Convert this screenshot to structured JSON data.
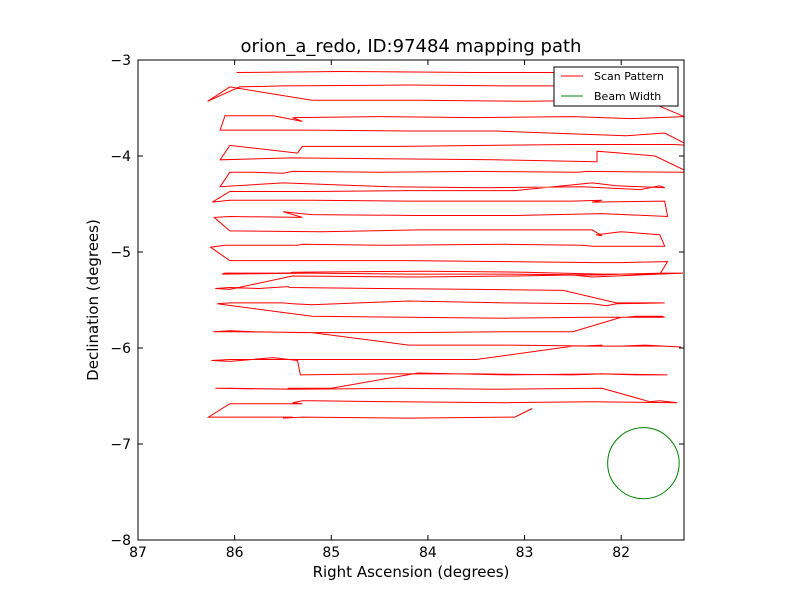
{
  "chart_data": {
    "type": "line",
    "title": "orion_a_redo, ID:97484 mapping path",
    "xlabel": "Right Ascension (degrees)",
    "ylabel": "Declination (degrees)",
    "xlim": [
      87.0,
      81.35
    ],
    "ylim": [
      -8.0,
      -3.0
    ],
    "x_inverted": true,
    "grid": false,
    "legend_position": "top-right",
    "x_ticks": [
      87,
      86,
      85,
      84,
      83,
      82
    ],
    "x_tick_labels": [
      "87",
      "86",
      "85",
      "84",
      "83",
      "82"
    ],
    "y_ticks": [
      -3,
      -4,
      -5,
      -6,
      -7,
      -8
    ],
    "y_tick_labels": [
      "−3",
      "−4",
      "−5",
      "−6",
      "−7",
      "−8"
    ],
    "series": [
      {
        "name": "Scan Pattern",
        "color": "#ff0000",
        "x": [
          85.98,
          84.9,
          83.5,
          82.35,
          81.75,
          81.45,
          81.8,
          82.3,
          83.2,
          84.2,
          85.5,
          85.95,
          86.28,
          86.05,
          85.2,
          84.1,
          83.0,
          82.0,
          81.7,
          81.35,
          81.9,
          82.5,
          83.5,
          84.5,
          85.4,
          85.3,
          85.6,
          86.1,
          86.15,
          85.25,
          84.2,
          83.3,
          82.5,
          81.95,
          81.55,
          81.3,
          81.45,
          82.5,
          83.4,
          84.3,
          85.3,
          85.35,
          86.05,
          86.15,
          85.4,
          84.3,
          83.3,
          82.25,
          82.25,
          82.0,
          81.65,
          81.3,
          82.35,
          82.45,
          83.5,
          84.5,
          85.4,
          85.5,
          85.8,
          86.05,
          86.15,
          85.5,
          84.4,
          83.4,
          82.4,
          81.8,
          81.6,
          81.55,
          82.05,
          82.3,
          83.1,
          84.2,
          85.2,
          86.05,
          86.23,
          86.05,
          85.2,
          84.2,
          83.2,
          82.5,
          82.2,
          82.3,
          81.55,
          81.52,
          82.2,
          83.1,
          84.1,
          85.2,
          85.5,
          85.3,
          86.05,
          86.21,
          86.05,
          85.1,
          84.1,
          83.2,
          82.3,
          82.2,
          82.26,
          82.0,
          81.6,
          81.55,
          82.3,
          82.4,
          83.2,
          84.4,
          85.3,
          85.35,
          86.1,
          86.25,
          86.05,
          85.1,
          84.2,
          83.2,
          82.25,
          82.2,
          82.0,
          81.52,
          81.6,
          82.2,
          83.0,
          84.0,
          85.4,
          85.43,
          86.1,
          86.13,
          85.2,
          84.2,
          83.2,
          82.2,
          82.0,
          81.55,
          81.36,
          82.3,
          82.5,
          83.1,
          84.1,
          85.4,
          85.45,
          86.05,
          86.2,
          86.05,
          85.75,
          85.45,
          85.43,
          84.5,
          83.5,
          82.6,
          82.05,
          81.6,
          81.55,
          82.05,
          82.15,
          82.3,
          83.2,
          84.2,
          85.2,
          85.4,
          85.5,
          86.05,
          86.18,
          85.2,
          84.2,
          83.2,
          82.3,
          81.95,
          81.85,
          81.58,
          81.55,
          82.0,
          82.5,
          83.2,
          84.2,
          85.3,
          85.8,
          86.05,
          86.22,
          86.0,
          85.2,
          84.2,
          83.2,
          82.2,
          82.2,
          82.4,
          81.55,
          81.38,
          81.75,
          82.0,
          82.5,
          83.5,
          84.5,
          85.45,
          85.55,
          86.05,
          86.24,
          86.05,
          85.6,
          85.35,
          85.32,
          84.5,
          83.5,
          82.5,
          82.2,
          81.85,
          81.55,
          81.52,
          82.2,
          83.2,
          84.1,
          85.0,
          85.45,
          85.3,
          86.05,
          86.2,
          85.4,
          84.3,
          83.3,
          82.2,
          81.7,
          81.6,
          81.42,
          82.3,
          83.2,
          84.3,
          85.2,
          85.3,
          85.4,
          85.3,
          86.05,
          86.27,
          85.4,
          85.5,
          85.3,
          84.2,
          83.1,
          82.92
        ],
        "y": [
          -3.13,
          -3.12,
          -3.13,
          -3.13,
          -3.14,
          -3.14,
          -3.28,
          -3.27,
          -3.27,
          -3.26,
          -3.27,
          -3.28,
          -3.43,
          -3.28,
          -3.42,
          -3.42,
          -3.43,
          -3.42,
          -3.44,
          -3.59,
          -3.61,
          -3.59,
          -3.6,
          -3.59,
          -3.6,
          -3.64,
          -3.58,
          -3.58,
          -3.73,
          -3.73,
          -3.74,
          -3.74,
          -3.77,
          -3.79,
          -3.76,
          -3.89,
          -3.88,
          -3.88,
          -3.89,
          -3.9,
          -3.9,
          -3.97,
          -3.89,
          -4.04,
          -4.02,
          -4.03,
          -4.04,
          -4.06,
          -3.95,
          -3.97,
          -4.0,
          -4.17,
          -4.16,
          -4.17,
          -4.16,
          -4.17,
          -4.16,
          -4.18,
          -4.17,
          -4.17,
          -4.32,
          -4.28,
          -4.32,
          -4.33,
          -4.32,
          -4.35,
          -4.31,
          -4.33,
          -4.31,
          -4.28,
          -4.36,
          -4.36,
          -4.37,
          -4.37,
          -4.48,
          -4.46,
          -4.46,
          -4.47,
          -4.47,
          -4.47,
          -4.46,
          -4.48,
          -4.47,
          -4.63,
          -4.6,
          -4.62,
          -4.62,
          -4.61,
          -4.58,
          -4.64,
          -4.63,
          -4.64,
          -4.78,
          -4.79,
          -4.77,
          -4.77,
          -4.77,
          -4.83,
          -4.82,
          -4.79,
          -4.82,
          -4.94,
          -4.94,
          -4.93,
          -4.92,
          -4.93,
          -4.92,
          -4.93,
          -4.93,
          -4.95,
          -5.09,
          -5.09,
          -5.09,
          -5.1,
          -5.11,
          -5.11,
          -5.11,
          -5.1,
          -5.23,
          -5.23,
          -5.21,
          -5.2,
          -5.21,
          -5.22,
          -5.22,
          -5.23,
          -5.22,
          -5.23,
          -5.23,
          -5.24,
          -5.23,
          -5.22,
          -5.22,
          -5.26,
          -5.24,
          -5.25,
          -5.26,
          -5.25,
          -5.26,
          -5.39,
          -5.38,
          -5.37,
          -5.38,
          -5.36,
          -5.37,
          -5.38,
          -5.39,
          -5.4,
          -5.53,
          -5.53,
          -5.53,
          -5.54,
          -5.56,
          -5.54,
          -5.53,
          -5.51,
          -5.55,
          -5.54,
          -5.53,
          -5.53,
          -5.54,
          -5.67,
          -5.68,
          -5.69,
          -5.68,
          -5.68,
          -5.67,
          -5.67,
          -5.68,
          -5.68,
          -5.83,
          -5.83,
          -5.84,
          -5.84,
          -5.83,
          -5.82,
          -5.83,
          -5.83,
          -5.84,
          -5.97,
          -5.97,
          -5.98,
          -5.97,
          -5.98,
          -5.98,
          -5.99,
          -5.97,
          -5.98,
          -5.98,
          -6.12,
          -6.12,
          -6.12,
          -6.12,
          -6.12,
          -6.13,
          -6.14,
          -6.1,
          -6.13,
          -6.28,
          -6.27,
          -6.27,
          -6.28,
          -6.27,
          -6.28,
          -6.28,
          -6.28,
          -6.27,
          -6.28,
          -6.26,
          -6.42,
          -6.42,
          -6.43,
          -6.42,
          -6.42,
          -6.43,
          -6.42,
          -6.43,
          -6.42,
          -6.56,
          -6.55,
          -6.57,
          -6.56,
          -6.57,
          -6.56,
          -6.55,
          -6.55,
          -6.57,
          -6.58,
          -6.58,
          -6.72,
          -6.72,
          -6.73,
          -6.72,
          -6.73,
          -6.72,
          -6.63
        ]
      },
      {
        "name": "Beam Width",
        "color": "#008000",
        "center": [
          81.77,
          -7.2
        ],
        "radius_deg": 0.37
      }
    ]
  }
}
